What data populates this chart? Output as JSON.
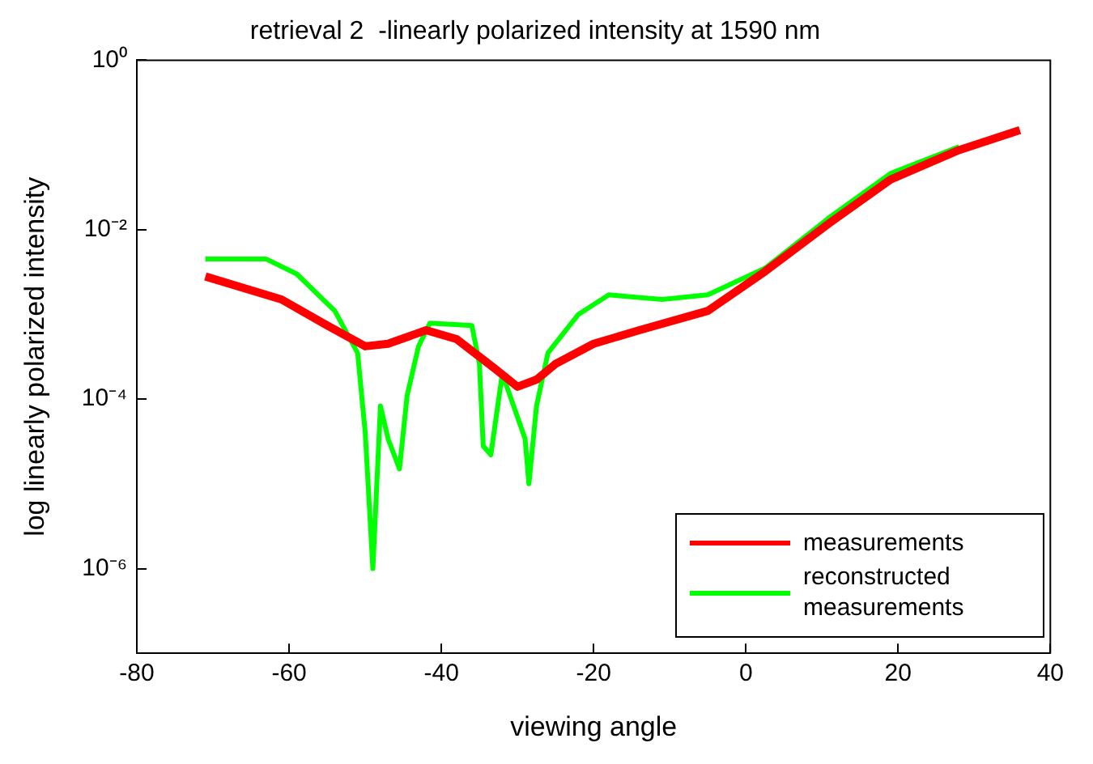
{
  "chart_data": {
    "type": "line",
    "title": "retrieval 2  -linearly polarized intensity at 1590 nm",
    "xlabel": "viewing angle",
    "ylabel": "log linearly polarized intensity",
    "log": "y",
    "xlim": [
      -80,
      40
    ],
    "xticks": [
      -80,
      -60,
      -40,
      -20,
      0,
      20,
      40
    ],
    "ylim": [
      1e-07,
      1
    ],
    "yticks": [
      {
        "value": 1,
        "label": "10⁰"
      },
      {
        "value": 0.01,
        "label": "10⁻²"
      },
      {
        "value": 0.0001,
        "label": "10⁻⁴"
      },
      {
        "value": 1e-06,
        "label": "10⁻⁶"
      }
    ],
    "grid": false,
    "legend": "bottom right",
    "marker": "none",
    "line_style": "solid",
    "series": [
      {
        "name": "measurements",
        "color": "#ff0000",
        "x": [
          -71,
          -61,
          -55,
          -50,
          -47,
          -42,
          -38,
          -33,
          -30,
          -27.5,
          -25,
          -20,
          -14,
          -5,
          2.5,
          11,
          19,
          28,
          36
        ],
        "values": [
          0.0028,
          0.0015,
          0.00074,
          0.00042,
          0.00045,
          0.00065,
          0.00051,
          0.00023,
          0.00014,
          0.00017,
          0.00026,
          0.00045,
          0.00065,
          0.0011,
          0.0032,
          0.012,
          0.039,
          0.087,
          0.15
        ]
      },
      {
        "name": "reconstructed measurements",
        "color": "#00ff00",
        "x": [
          -71,
          -63,
          -59,
          -54,
          -51,
          -50,
          -49,
          -48,
          -47,
          -45.5,
          -44.5,
          -43,
          -41.5,
          -36,
          -35,
          -34.5,
          -33.5,
          -32,
          -29,
          -28.5,
          -27.5,
          -26,
          -22,
          -18,
          -11,
          -5,
          2.5,
          11,
          19,
          28
        ],
        "values": [
          0.0045,
          0.0045,
          0.003,
          0.0011,
          0.00035,
          4e-05,
          1e-06,
          8.3e-05,
          3.4e-05,
          1.5e-05,
          0.00011,
          0.00042,
          0.00079,
          0.00074,
          0.00026,
          2.8e-05,
          2.2e-05,
          0.0002,
          3.4e-05,
          1e-05,
          8.3e-05,
          0.00035,
          0.001,
          0.0017,
          0.0015,
          0.0017,
          0.0035,
          0.014,
          0.046,
          0.095
        ]
      }
    ]
  }
}
